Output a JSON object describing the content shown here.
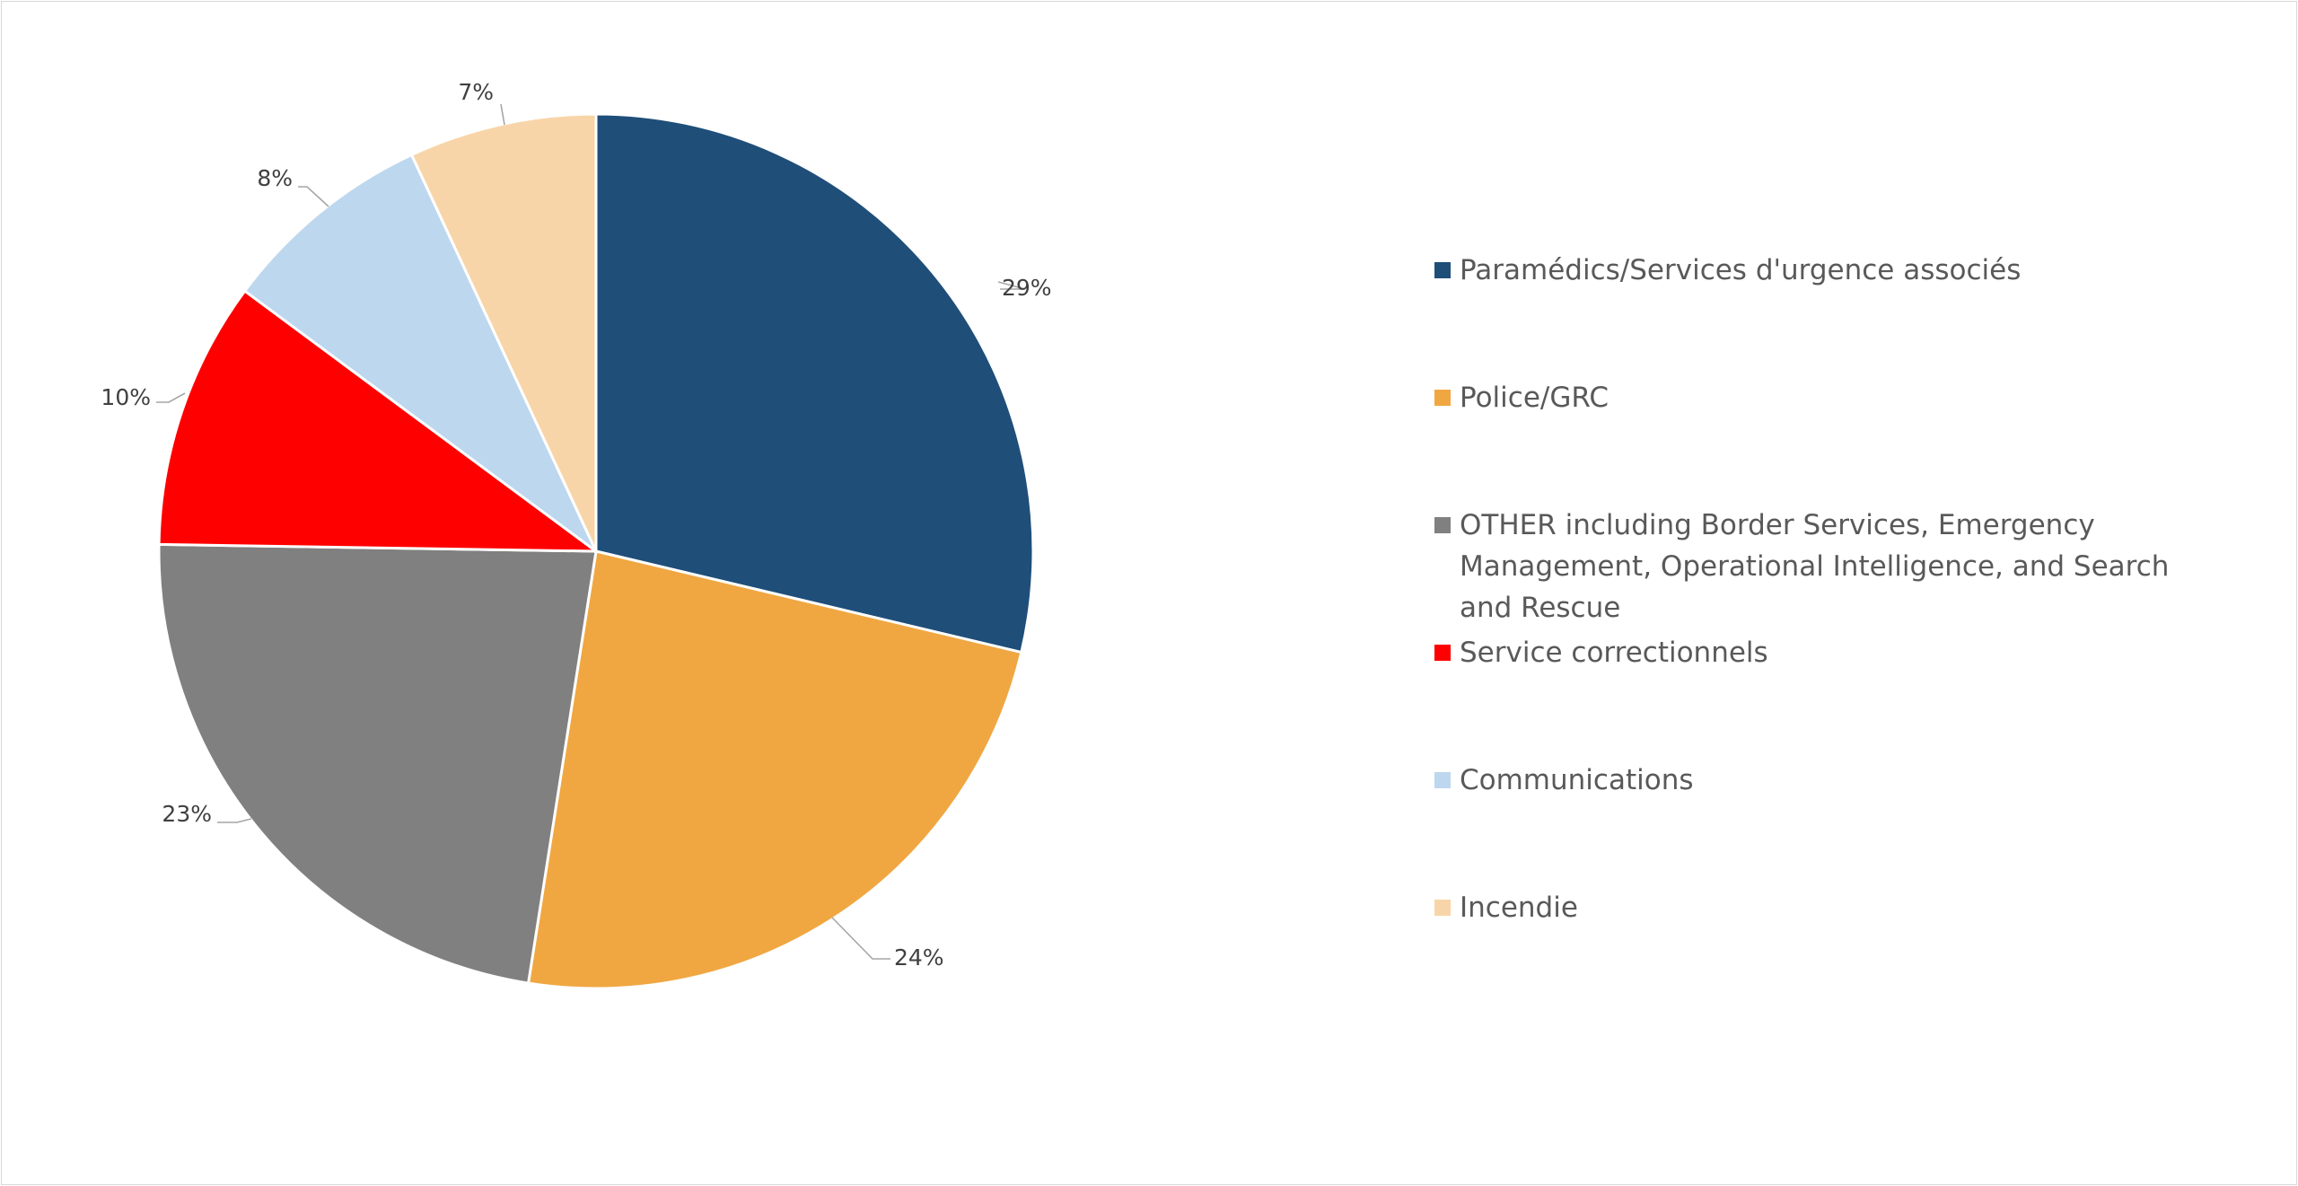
{
  "chart_data": {
    "type": "pie",
    "title": "",
    "slices": [
      {
        "label": "Paramédics/Services d'urgence associés",
        "value": 29,
        "display": "29%",
        "color": "#1f4e79"
      },
      {
        "label": "Police/GRC",
        "value": 24,
        "display": "24%",
        "color": "#f0a742"
      },
      {
        "label": "OTHER including Border Services, Emergency Management, Operational Intelligence, and Search and Rescue",
        "value": 23,
        "display": "23%",
        "color": "#808080"
      },
      {
        "label": "Service correctionnels",
        "value": 10,
        "display": "10%",
        "color": "#ff0000"
      },
      {
        "label": "Communications",
        "value": 8,
        "display": "8%",
        "color": "#bdd7ee"
      },
      {
        "label": "Incendie",
        "value": 7,
        "display": "7%",
        "color": "#f8d5a8"
      }
    ],
    "start_angle": "12 o'clock, clockwise",
    "legend_position": "right"
  }
}
